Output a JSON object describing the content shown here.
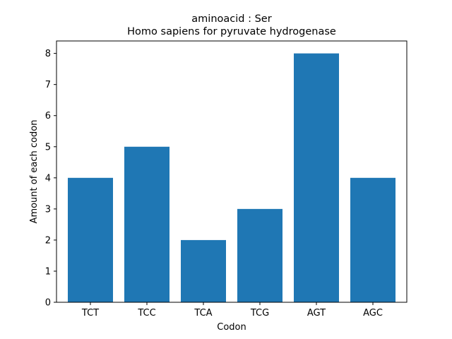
{
  "chart_data": {
    "type": "bar",
    "title_line1": "aminoacid : Ser",
    "title_line2": "Homo sapiens for pyruvate hydrogenase",
    "xlabel": "Codon",
    "ylabel": "Amount of each codon",
    "categories": [
      "TCT",
      "TCC",
      "TCA",
      "TCG",
      "AGT",
      "AGC"
    ],
    "values": [
      4,
      5,
      2,
      3,
      8,
      4
    ],
    "ylim": [
      0,
      8.4
    ],
    "yticks": [
      "0",
      "1",
      "2",
      "3",
      "4",
      "5",
      "6",
      "7",
      "8"
    ],
    "bar_color": "#1f77b4",
    "grid": false
  }
}
